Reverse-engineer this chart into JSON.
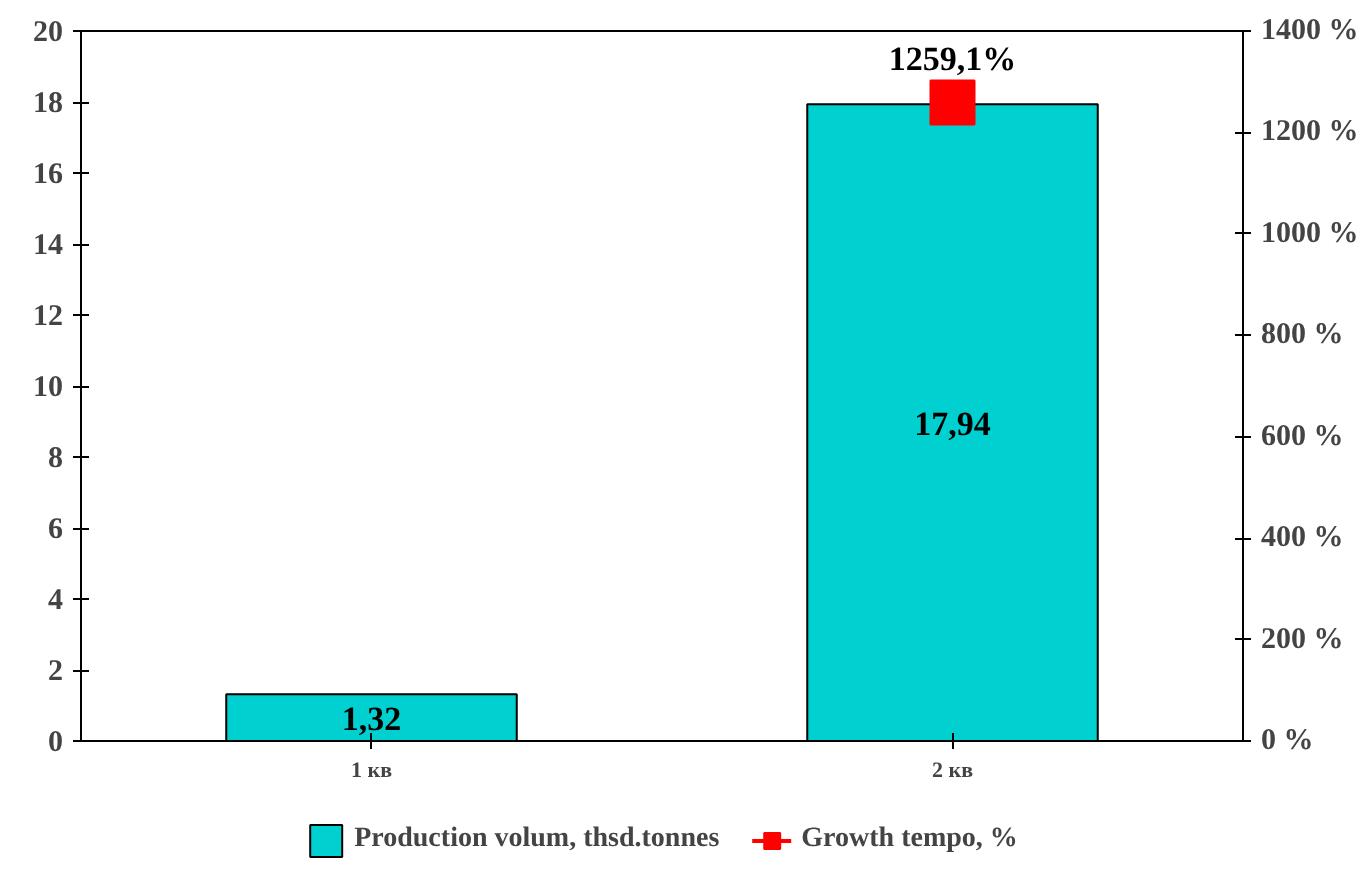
{
  "chart_data": {
    "type": "bar",
    "categories": [
      "1 кв",
      "2 кв"
    ],
    "series": [
      {
        "name": "Production volum, thsd.tonnes",
        "color": "#00d0d0",
        "values": [
          1.32,
          17.94
        ],
        "value_labels": [
          "1,32",
          "17,94"
        ]
      },
      {
        "name": "Growth tempo, %",
        "type": "line",
        "axis": "y2",
        "color": "#ff0000",
        "marker": "square",
        "values": [
          null,
          1259.1
        ],
        "value_labels": [
          null,
          "1259,1%"
        ]
      }
    ],
    "ylim": [
      0,
      20
    ],
    "yticks": [
      0,
      2,
      4,
      6,
      8,
      10,
      12,
      14,
      16,
      18,
      20
    ],
    "y2lim": [
      0,
      1400
    ],
    "y2ticks": [
      {
        "value": 0,
        "label": "0 %"
      },
      {
        "value": 200,
        "label": "200 %"
      },
      {
        "value": 400,
        "label": "400 %"
      },
      {
        "value": 600,
        "label": "600 %"
      },
      {
        "value": 800,
        "label": "800 %"
      },
      {
        "value": 1000,
        "label": "1000 %"
      },
      {
        "value": 1200,
        "label": "1200 %"
      },
      {
        "value": 1400,
        "label": "1400 %"
      }
    ],
    "grid": false,
    "legend": "bottom"
  }
}
